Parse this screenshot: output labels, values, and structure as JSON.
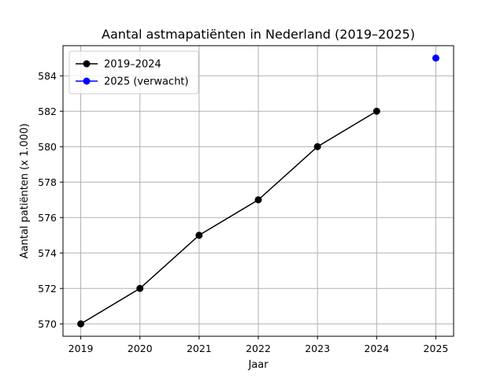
{
  "chart_data": {
    "type": "line",
    "title": "Aantal astmapatiënten in Nederland (2019–2025)",
    "xlabel": "Jaar",
    "ylabel": "Aantal patiënten (x 1.000)",
    "x_ticks": [
      "2019",
      "2020",
      "2021",
      "2022",
      "2023",
      "2024",
      "2025"
    ],
    "y_ticks": [
      "570",
      "572",
      "574",
      "576",
      "578",
      "580",
      "582",
      "584"
    ],
    "xlim": [
      2018.7,
      2025.3
    ],
    "ylim": [
      569.3,
      585.7
    ],
    "grid": true,
    "legend_position": "top-left",
    "series": [
      {
        "name": "2019–2024",
        "color": "#000000",
        "marker": "circle",
        "line": true,
        "x": [
          2019,
          2020,
          2021,
          2022,
          2023,
          2024
        ],
        "y": [
          570,
          572,
          575,
          577,
          580,
          582
        ]
      },
      {
        "name": "2025 (verwacht)",
        "color": "#0000ff",
        "marker": "circle",
        "line": false,
        "x": [
          2025
        ],
        "y": [
          585
        ]
      }
    ]
  }
}
